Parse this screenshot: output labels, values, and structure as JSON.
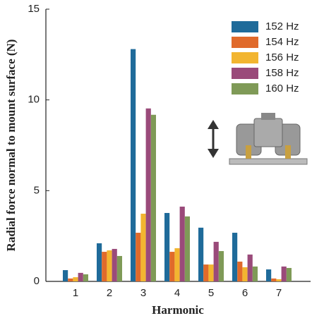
{
  "chart_data": {
    "type": "bar",
    "xlabel": "Harmonic",
    "ylabel": "Radial force normal to mount surface (N)",
    "categories": [
      "1",
      "2",
      "3",
      "4",
      "5",
      "6",
      "7"
    ],
    "series": [
      {
        "name": "152 Hz",
        "color": "#1f6b9a",
        "values": [
          0.62,
          2.1,
          12.8,
          3.77,
          2.96,
          2.68,
          0.66
        ]
      },
      {
        "name": "154 Hz",
        "color": "#e06a2b",
        "values": [
          0.16,
          1.63,
          2.68,
          1.63,
          0.93,
          1.09,
          0.16
        ]
      },
      {
        "name": "156 Hz",
        "color": "#f2b530",
        "values": [
          0.23,
          1.71,
          3.73,
          1.83,
          0.93,
          0.78,
          0.12
        ]
      },
      {
        "name": "158 Hz",
        "color": "#9a4a7a",
        "values": [
          0.47,
          1.79,
          9.53,
          4.12,
          2.18,
          1.48,
          0.82
        ]
      },
      {
        "name": "160 Hz",
        "color": "#7f9a57",
        "values": [
          0.39,
          1.4,
          9.18,
          3.58,
          1.67,
          0.82,
          0.74
        ]
      }
    ],
    "ylim": [
      0,
      15
    ],
    "yticks": [
      0,
      5,
      10,
      15
    ],
    "grid": false,
    "legend": "upper right"
  }
}
